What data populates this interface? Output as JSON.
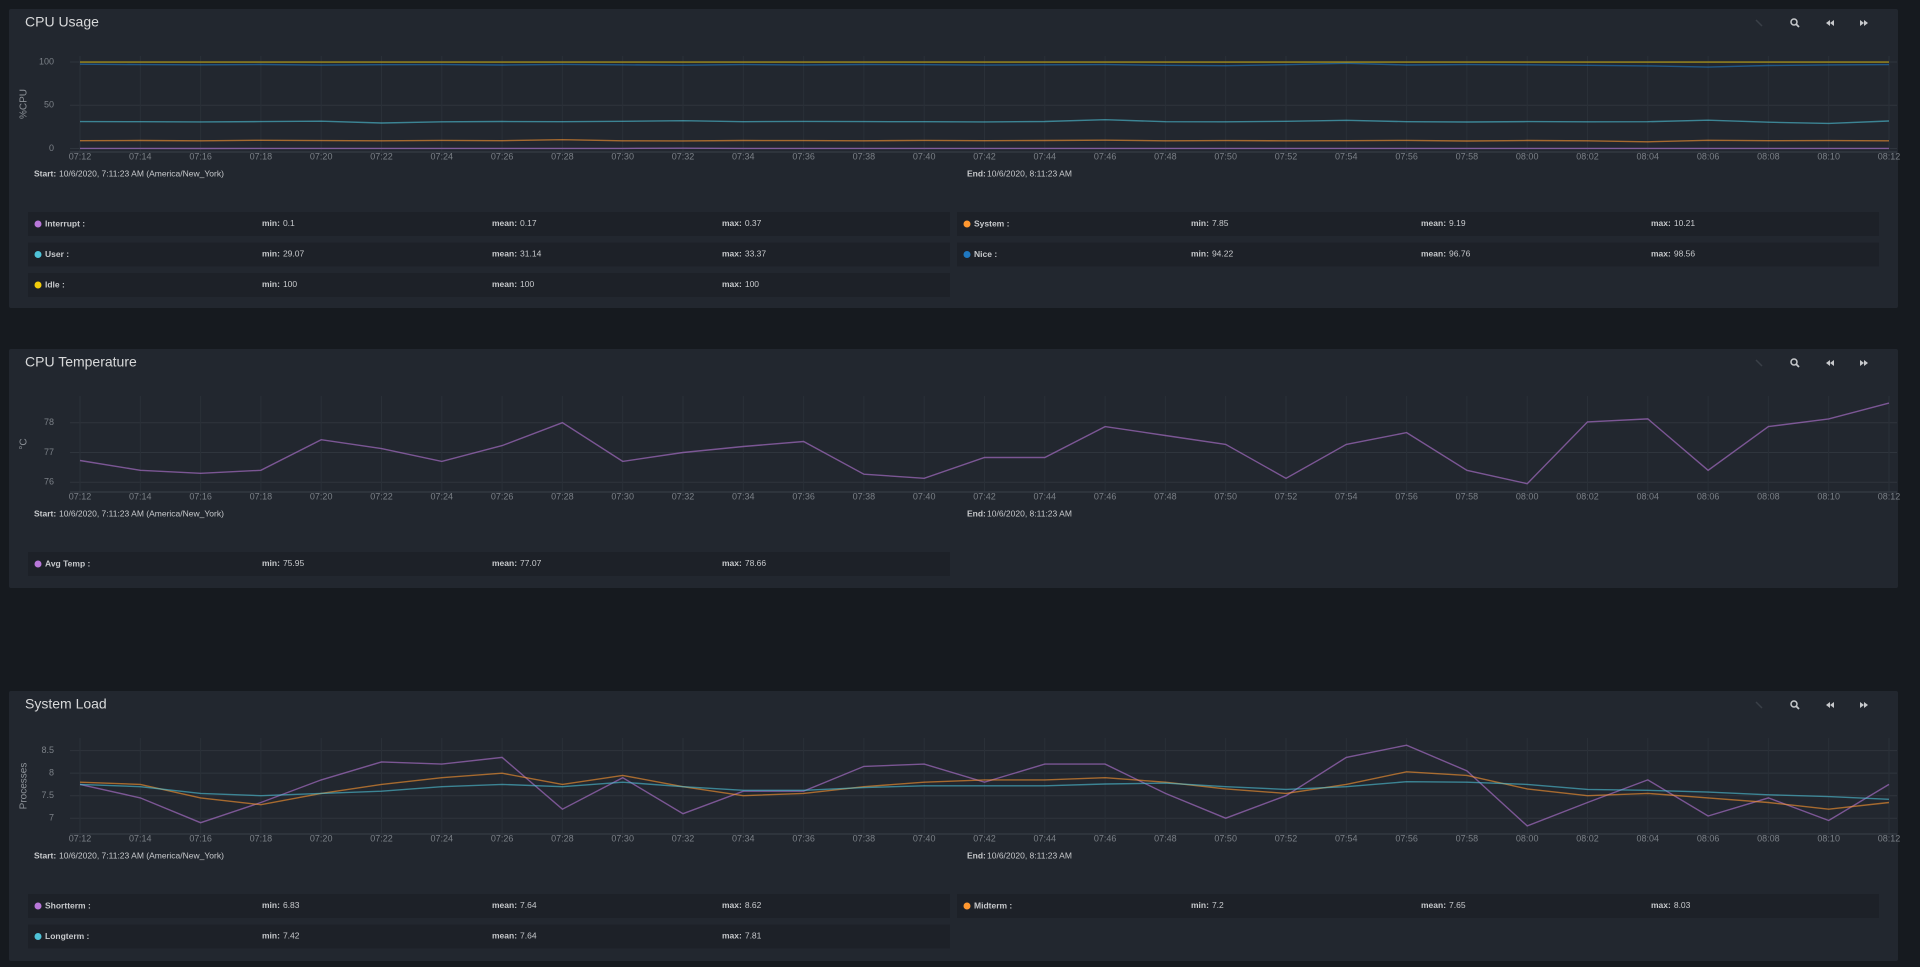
{
  "panels": [
    {
      "title": "CPU Usage",
      "chart_data": {
        "type": "line",
        "ylabel": "%CPU",
        "categories": [
          "07:12",
          "07:14",
          "07:16",
          "07:18",
          "07:20",
          "07:22",
          "07:24",
          "07:26",
          "07:28",
          "07:30",
          "07:32",
          "07:34",
          "07:36",
          "07:38",
          "07:40",
          "07:42",
          "07:44",
          "07:46",
          "07:48",
          "07:50",
          "07:52",
          "07:54",
          "07:56",
          "07:58",
          "08:00",
          "08:02",
          "08:04",
          "08:06",
          "08:08",
          "08:10",
          "08:12"
        ],
        "ylim": [
          -4,
          107
        ],
        "yticks": [
          0,
          50,
          100
        ],
        "grid": true,
        "series": [
          {
            "name": "Interrupt :",
            "color": "#b877d9",
            "min": 0.1,
            "mean": 0.17,
            "max": 0.37,
            "values": [
              0.15,
              0.2,
              0.1,
              0.17,
              0.16,
              0.18,
              0.15,
              0.2,
              0.17,
              0.14,
              0.37,
              0.16,
              0.18,
              0.15,
              0.17,
              0.19,
              0.16,
              0.15,
              0.17,
              0.18,
              0.16,
              0.2,
              0.15,
              0.17,
              0.16,
              0.18,
              0.15,
              0.17,
              0.16,
              0.18,
              0.17
            ]
          },
          {
            "name": "System :",
            "color": "#ff9830",
            "min": 7.85,
            "mean": 9.19,
            "max": 10.21,
            "values": [
              9.1,
              9.3,
              9.0,
              9.5,
              9.2,
              8.9,
              9.4,
              9.1,
              10.21,
              9.0,
              8.8,
              9.3,
              9.2,
              9.0,
              9.4,
              9.1,
              9.3,
              9.6,
              8.9,
              9.2,
              9.0,
              9.1,
              9.4,
              8.7,
              9.3,
              9.0,
              7.85,
              9.5,
              9.1,
              9.2,
              9.0
            ]
          },
          {
            "name": "User :",
            "color": "#4fc3d8",
            "min": 29.07,
            "mean": 31.14,
            "max": 33.37,
            "values": [
              31.2,
              31.0,
              30.8,
              31.1,
              31.6,
              29.5,
              30.9,
              31.3,
              31.0,
              31.5,
              32.2,
              31.0,
              31.4,
              31.2,
              31.0,
              30.8,
              31.3,
              33.37,
              31.0,
              30.9,
              31.5,
              32.6,
              31.0,
              30.7,
              31.2,
              30.9,
              31.0,
              32.8,
              30.4,
              29.07,
              31.8
            ]
          },
          {
            "name": "Nice :",
            "color": "#1f78c1",
            "min": 94.22,
            "mean": 96.76,
            "max": 98.56,
            "values": [
              97.5,
              97.0,
              96.8,
              97.2,
              96.5,
              96.9,
              97.1,
              96.6,
              97.3,
              96.8,
              96.4,
              97.0,
              96.7,
              97.2,
              96.9,
              96.5,
              96.8,
              97.0,
              96.3,
              95.8,
              96.9,
              98.56,
              96.6,
              97.0,
              96.8,
              96.2,
              95.5,
              94.22,
              96.0,
              96.7,
              97.1
            ]
          },
          {
            "name": "Idle :",
            "color": "#f2cc0c",
            "min": 100,
            "mean": 100,
            "max": 100,
            "values": [
              100,
              100,
              100,
              100,
              100,
              100,
              100,
              100,
              100,
              100,
              100,
              100,
              100,
              100,
              100,
              100,
              100,
              100,
              100,
              100,
              100,
              100,
              100,
              100,
              100,
              100,
              100,
              100,
              100,
              100,
              100
            ]
          }
        ]
      },
      "range": {
        "start_label": "Start:",
        "start": "10/6/2020, 7:11:23 AM (America/New_York)",
        "end_label": "End:",
        "end": "10/6/2020, 8:11:23 AM"
      },
      "stat_labels": {
        "min": "min:",
        "mean": "mean:",
        "max": "max:"
      }
    },
    {
      "title": "CPU Temperature",
      "chart_data": {
        "type": "line",
        "ylabel": "°C",
        "categories": [
          "07:12",
          "07:14",
          "07:16",
          "07:18",
          "07:20",
          "07:22",
          "07:24",
          "07:26",
          "07:28",
          "07:30",
          "07:32",
          "07:34",
          "07:36",
          "07:38",
          "07:40",
          "07:42",
          "07:44",
          "07:46",
          "07:48",
          "07:50",
          "07:52",
          "07:54",
          "07:56",
          "07:58",
          "08:00",
          "08:02",
          "08:04",
          "08:06",
          "08:08",
          "08:10",
          "08:12"
        ],
        "ylim": [
          75.67,
          78.9
        ],
        "yticks": [
          76,
          77,
          78
        ],
        "grid": true,
        "series": [
          {
            "name": "Avg Temp :",
            "color": "#b877d9",
            "min": 75.95,
            "mean": 77.07,
            "max": 78.66,
            "values": [
              76.73,
              76.4,
              76.3,
              76.4,
              77.43,
              77.13,
              76.7,
              77.23,
              78.0,
              76.7,
              77.0,
              77.2,
              77.37,
              76.27,
              76.13,
              76.83,
              76.83,
              77.87,
              77.57,
              77.27,
              76.13,
              77.27,
              77.67,
              76.4,
              75.95,
              78.03,
              78.13,
              76.4,
              77.87,
              78.13,
              78.66
            ]
          }
        ]
      },
      "range": {
        "start_label": "Start:",
        "start": "10/6/2020, 7:11:23 AM (America/New_York)",
        "end_label": "End:",
        "end": "10/6/2020, 8:11:23 AM"
      },
      "stat_labels": {
        "min": "min:",
        "mean": "mean:",
        "max": "max:"
      }
    },
    {
      "title": "System Load",
      "chart_data": {
        "type": "line",
        "ylabel": "Processes",
        "categories": [
          "07:12",
          "07:14",
          "07:16",
          "07:18",
          "07:20",
          "07:22",
          "07:24",
          "07:26",
          "07:28",
          "07:30",
          "07:32",
          "07:34",
          "07:36",
          "07:38",
          "07:40",
          "07:42",
          "07:44",
          "07:46",
          "07:48",
          "07:50",
          "07:52",
          "07:54",
          "07:56",
          "07:58",
          "08:00",
          "08:02",
          "08:04",
          "08:06",
          "08:08",
          "08:10",
          "08:12"
        ],
        "ylim": [
          6.65,
          8.78
        ],
        "yticks": [
          7,
          7.5,
          8,
          8.5
        ],
        "grid": true,
        "series": [
          {
            "name": "Shortterm :",
            "color": "#b877d9",
            "min": 6.83,
            "mean": 7.64,
            "max": 8.62,
            "values": [
              7.75,
              7.45,
              6.9,
              7.35,
              7.85,
              8.25,
              8.2,
              8.35,
              7.2,
              7.9,
              7.1,
              7.6,
              7.6,
              8.15,
              8.2,
              7.8,
              8.2,
              8.2,
              7.55,
              7.0,
              7.5,
              8.35,
              8.62,
              8.05,
              6.83,
              7.35,
              7.85,
              7.05,
              7.45,
              6.95,
              7.75
            ]
          },
          {
            "name": "Midterm :",
            "color": "#ff9830",
            "min": 7.2,
            "mean": 7.65,
            "max": 8.03,
            "values": [
              7.8,
              7.75,
              7.45,
              7.3,
              7.55,
              7.75,
              7.9,
              8.0,
              7.75,
              7.95,
              7.7,
              7.5,
              7.55,
              7.7,
              7.8,
              7.85,
              7.85,
              7.9,
              7.8,
              7.65,
              7.55,
              7.75,
              8.03,
              7.95,
              7.65,
              7.5,
              7.55,
              7.45,
              7.35,
              7.2,
              7.35
            ]
          },
          {
            "name": "Longterm :",
            "color": "#4fc3d8",
            "min": 7.42,
            "mean": 7.64,
            "max": 7.81,
            "values": [
              7.75,
              7.7,
              7.55,
              7.5,
              7.55,
              7.6,
              7.7,
              7.75,
              7.7,
              7.8,
              7.7,
              7.62,
              7.62,
              7.68,
              7.72,
              7.72,
              7.72,
              7.76,
              7.78,
              7.7,
              7.64,
              7.7,
              7.81,
              7.8,
              7.75,
              7.64,
              7.62,
              7.58,
              7.52,
              7.48,
              7.42
            ]
          }
        ]
      },
      "range": {
        "start_label": "Start:",
        "start": "10/6/2020, 7:11:23 AM (America/New_York)",
        "end_label": "End:",
        "end": "10/6/2020, 8:11:23 AM"
      },
      "stat_labels": {
        "min": "min:",
        "mean": "mean:",
        "max": "max:"
      }
    }
  ]
}
